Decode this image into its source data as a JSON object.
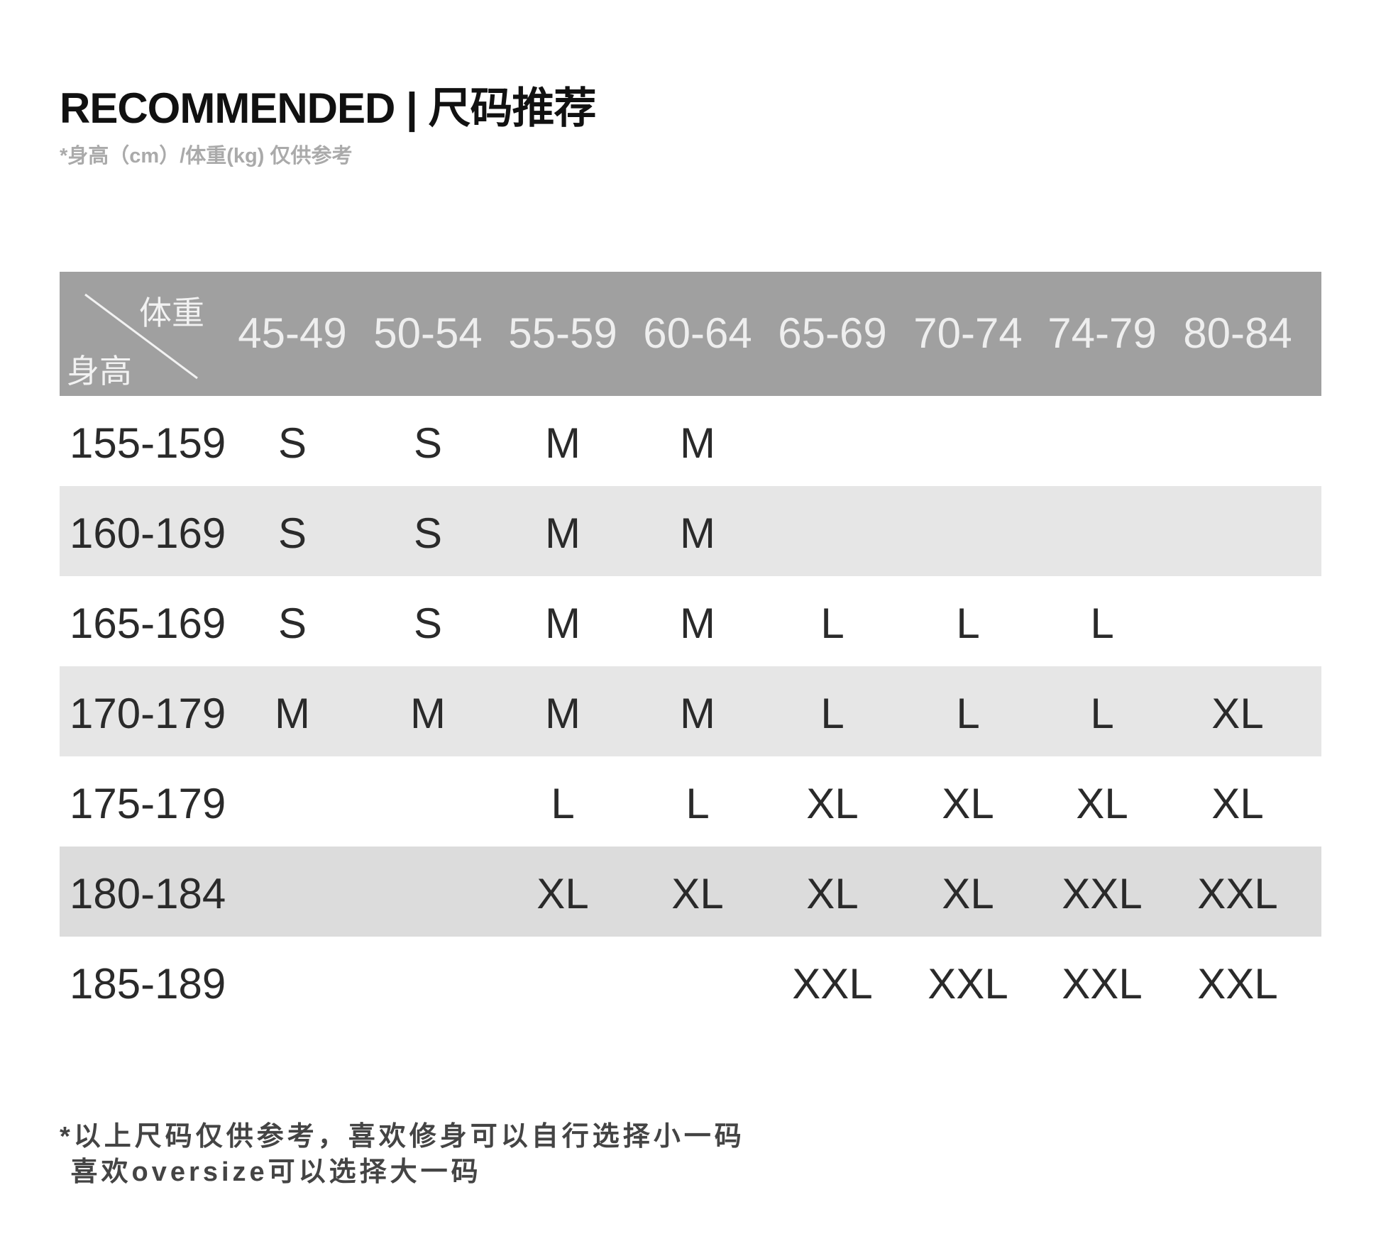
{
  "title": "RECOMMENDED | 尺码推荐",
  "subtitle": "*身高（cm）/体重(kg) 仅供参考",
  "table": {
    "corner_weight": "体重",
    "corner_height": "身高",
    "weights": [
      "45-49",
      "50-54",
      "55-59",
      "60-64",
      "65-69",
      "70-74",
      "74-79",
      "80-84"
    ],
    "rows": [
      {
        "height": "155-159",
        "sizes": [
          "S",
          "S",
          "M",
          "M",
          "",
          "",
          "",
          ""
        ]
      },
      {
        "height": "160-169",
        "sizes": [
          "S",
          "S",
          "M",
          "M",
          "",
          "",
          "",
          ""
        ]
      },
      {
        "height": "165-169",
        "sizes": [
          "S",
          "S",
          "M",
          "M",
          "L",
          "L",
          "L",
          ""
        ]
      },
      {
        "height": "170-179",
        "sizes": [
          "M",
          "M",
          "M",
          "M",
          "L",
          "L",
          "L",
          "XL"
        ]
      },
      {
        "height": "175-179",
        "sizes": [
          "",
          "",
          "L",
          "L",
          "XL",
          "XL",
          "XL",
          "XL"
        ]
      },
      {
        "height": "180-184",
        "sizes": [
          "",
          "",
          "XL",
          "XL",
          "XL",
          "XL",
          "XXL",
          "XXL"
        ]
      },
      {
        "height": "185-189",
        "sizes": [
          "",
          "",
          "",
          "",
          "XXL",
          "XXL",
          "XXL",
          "XXL"
        ]
      }
    ]
  },
  "notes": [
    "*以上尺码仅供参考，喜欢修身可以自行选择小一码",
    " 喜欢oversize可以选择大一码"
  ],
  "colors": {
    "header_bg": "#a0a0a0",
    "stripe": "#e6e6e6",
    "text": "#2a2a2a"
  }
}
